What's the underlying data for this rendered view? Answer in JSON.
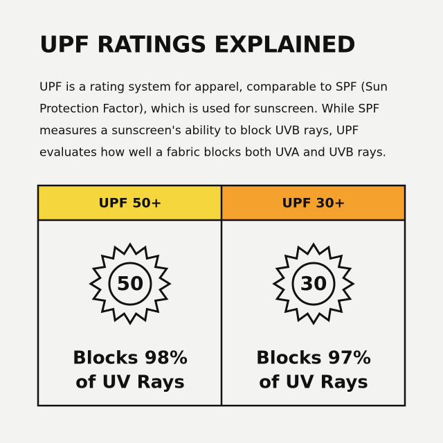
{
  "header": {
    "title": "UPF RATINGS EXPLAINED",
    "body": [
      "UPF is a rating system for apparel, comparable to SPF (Sun",
      "Protection Factor), which is used for sunscreen. While SPF",
      "measures a sunscreen's ability to block UVB rays, UPF",
      "evaluates how well a fabric blocks both UVA and UVB rays."
    ]
  },
  "table": {
    "columns": [
      {
        "label": "UPF 50+",
        "badge": "50",
        "text": [
          "Blocks 98%",
          "of UV Rays"
        ]
      },
      {
        "label": "UPF 30+",
        "badge": "30",
        "text": [
          "Blocks 97%",
          "of UV Rays"
        ]
      }
    ]
  }
}
